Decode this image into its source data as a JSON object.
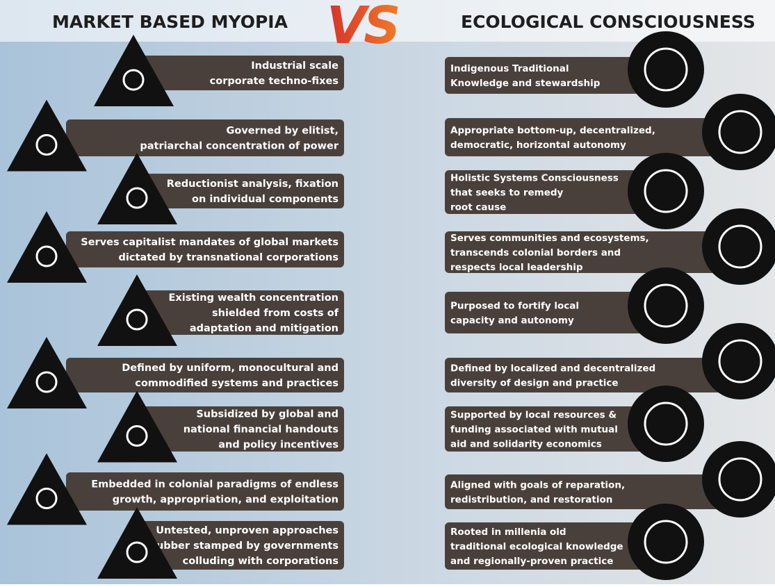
{
  "left": {
    "title": "MARKET BASED MYOPIA",
    "items": [
      {
        "lines": [
          "Industrial scale",
          "corporate techno-fixes"
        ]
      },
      {
        "lines": [
          "Governed by elitist,",
          "patriarchal concentration of power"
        ]
      },
      {
        "lines": [
          "Reductionist analysis, fixation",
          "on individual components"
        ]
      },
      {
        "lines": [
          "Serves capitalist mandates of global markets",
          "dictated by transnational corporations"
        ]
      },
      {
        "lines": [
          "Existing wealth concentration",
          "shielded from costs of",
          "adaptation and mitigation"
        ]
      },
      {
        "lines": [
          "Defined by uniform, monocultural and",
          "commodified systems and practices"
        ]
      },
      {
        "lines": [
          "Subsidized by global and",
          "national financial handouts",
          "and policy incentives"
        ]
      },
      {
        "lines": [
          "Embedded in colonial paradigms of endless",
          "growth, appropriation, and exploitation"
        ]
      },
      {
        "lines": [
          "Untested, unproven approaches",
          "rubber stamped by governments",
          "colluding with corporations"
        ]
      }
    ]
  },
  "vs": "VS",
  "right": {
    "title": "ECOLOGICAL CONSCIOUSNESS",
    "items": [
      {
        "lines": [
          "Indigenous Traditional",
          "Knowledge and stewardship"
        ]
      },
      {
        "lines": [
          "Appropriate bottom-up, decentralized,",
          "democratic, horizontal autonomy"
        ]
      },
      {
        "lines": [
          "Holistic Systems Consciousness",
          "that seeks to remedy",
          "root cause"
        ]
      },
      {
        "lines": [
          "Serves communities and ecosystems,",
          "transcends colonial borders and",
          "respects local leadership"
        ]
      },
      {
        "lines": [
          "Purposed to fortify local",
          "capacity and autonomy"
        ]
      },
      {
        "lines": [
          "Defined by localized and decentralized",
          "diversity of design and practice"
        ]
      },
      {
        "lines": [
          "Supported by local resources &",
          "funding associated with mutual",
          "aid and solidarity economics"
        ]
      },
      {
        "lines": [
          "Aligned with goals of reparation,",
          "redistribution, and restoration"
        ]
      },
      {
        "lines": [
          "Rooted in millenia old",
          "traditional ecological knowledge",
          "and regionally-proven practice"
        ]
      }
    ]
  }
}
